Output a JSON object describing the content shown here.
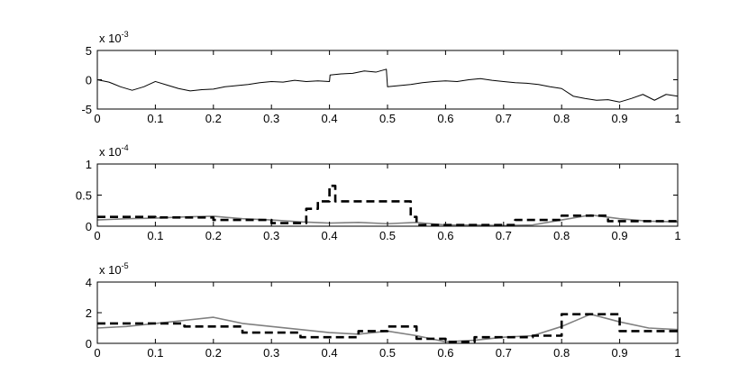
{
  "chart_data": [
    {
      "type": "line",
      "scale_label": "x 10",
      "scale_exponent": "-3",
      "xlim": [
        0,
        1
      ],
      "xticks": [
        0,
        0.1,
        0.2,
        0.3,
        0.4,
        0.5,
        0.6,
        0.7,
        0.8,
        0.9,
        1
      ],
      "ylim": [
        -5,
        5
      ],
      "yticks": [
        -5,
        0,
        5
      ],
      "grid": false,
      "series": [
        {
          "color": "#000000",
          "dashed": false,
          "x": [
            0,
            0.02,
            0.04,
            0.06,
            0.08,
            0.1,
            0.12,
            0.14,
            0.16,
            0.18,
            0.2,
            0.22,
            0.24,
            0.26,
            0.28,
            0.3,
            0.32,
            0.34,
            0.36,
            0.38,
            0.4,
            0.401,
            0.42,
            0.44,
            0.46,
            0.48,
            0.498,
            0.5,
            0.52,
            0.54,
            0.56,
            0.58,
            0.6,
            0.62,
            0.64,
            0.66,
            0.68,
            0.7,
            0.72,
            0.74,
            0.76,
            0.78,
            0.8,
            0.82,
            0.84,
            0.86,
            0.88,
            0.9,
            0.92,
            0.94,
            0.96,
            0.98,
            1
          ],
          "values": [
            0,
            -0.4,
            -1.2,
            -1.8,
            -1.2,
            -0.3,
            -0.9,
            -1.5,
            -1.9,
            -1.7,
            -1.6,
            -1.2,
            -1,
            -0.8,
            -0.5,
            -0.3,
            -0.4,
            -0.1,
            -0.3,
            -0.2,
            -0.3,
            0.8,
            1,
            1.1,
            1.5,
            1.3,
            1.8,
            -1.2,
            -1,
            -0.8,
            -0.5,
            -0.3,
            -0.2,
            -0.3,
            0,
            0.2,
            -0.1,
            -0.3,
            -0.5,
            -0.6,
            -0.8,
            -1.2,
            -1.5,
            -2.8,
            -3.2,
            -3.5,
            -3.4,
            -3.8,
            -3.2,
            -2.5,
            -3.5,
            -2.5,
            -2.8
          ]
        }
      ]
    },
    {
      "type": "line",
      "scale_label": "x 10",
      "scale_exponent": "-4",
      "xlim": [
        0,
        1
      ],
      "xticks": [
        0,
        0.1,
        0.2,
        0.3,
        0.4,
        0.5,
        0.6,
        0.7,
        0.8,
        0.9,
        1
      ],
      "ylim": [
        0,
        1
      ],
      "yticks": [
        0,
        0.5,
        1
      ],
      "grid": false,
      "series": [
        {
          "color": "#808080",
          "dashed": false,
          "x": [
            0,
            0.05,
            0.1,
            0.15,
            0.2,
            0.25,
            0.3,
            0.35,
            0.4,
            0.45,
            0.5,
            0.55,
            0.6,
            0.65,
            0.7,
            0.75,
            0.8,
            0.85,
            0.9,
            0.95,
            1
          ],
          "values": [
            0.1,
            0.12,
            0.13,
            0.15,
            0.16,
            0.12,
            0.1,
            0.07,
            0.05,
            0.06,
            0.04,
            0.06,
            0.02,
            0.02,
            0.01,
            0.02,
            0.1,
            0.18,
            0.12,
            0.08,
            0.07
          ]
        },
        {
          "color": "#000000",
          "dashed": true,
          "x": [
            0,
            0.1,
            0.1,
            0.2,
            0.2,
            0.3,
            0.3,
            0.36,
            0.36,
            0.38,
            0.38,
            0.4,
            0.4,
            0.41,
            0.41,
            0.54,
            0.54,
            0.55,
            0.55,
            0.72,
            0.72,
            0.8,
            0.8,
            0.88,
            0.88,
            1
          ],
          "values": [
            0.15,
            0.15,
            0.14,
            0.14,
            0.1,
            0.1,
            0.05,
            0.05,
            0.28,
            0.28,
            0.4,
            0.4,
            0.65,
            0.65,
            0.4,
            0.4,
            0.15,
            0.15,
            0.02,
            0.02,
            0.1,
            0.1,
            0.17,
            0.17,
            0.08,
            0.08
          ]
        }
      ]
    },
    {
      "type": "line",
      "scale_label": "x 10",
      "scale_exponent": "-5",
      "xlim": [
        0,
        1
      ],
      "xticks": [
        0,
        0.1,
        0.2,
        0.3,
        0.4,
        0.5,
        0.6,
        0.7,
        0.8,
        0.9,
        1
      ],
      "ylim": [
        0,
        4
      ],
      "yticks": [
        0,
        2,
        4
      ],
      "grid": false,
      "series": [
        {
          "color": "#808080",
          "dashed": false,
          "x": [
            0,
            0.05,
            0.1,
            0.15,
            0.2,
            0.25,
            0.3,
            0.35,
            0.4,
            0.45,
            0.5,
            0.55,
            0.6,
            0.65,
            0.7,
            0.75,
            0.8,
            0.85,
            0.9,
            0.95,
            1
          ],
          "values": [
            1,
            1.1,
            1.3,
            1.5,
            1.7,
            1.3,
            1.1,
            0.9,
            0.7,
            0.6,
            0.8,
            0.5,
            0.1,
            0.2,
            0.4,
            0.5,
            1.1,
            1.9,
            1.4,
            1,
            0.9
          ]
        },
        {
          "color": "#000000",
          "dashed": true,
          "x": [
            0,
            0.15,
            0.15,
            0.25,
            0.25,
            0.35,
            0.35,
            0.45,
            0.45,
            0.5,
            0.5,
            0.55,
            0.55,
            0.6,
            0.6,
            0.65,
            0.65,
            0.75,
            0.75,
            0.8,
            0.8,
            0.9,
            0.9,
            1
          ],
          "values": [
            1.3,
            1.3,
            1.1,
            1.1,
            0.7,
            0.7,
            0.4,
            0.4,
            0.8,
            0.8,
            1.1,
            1.1,
            0.3,
            0.3,
            0.1,
            0.1,
            0.4,
            0.4,
            0.5,
            0.5,
            1.9,
            1.9,
            0.8,
            0.8
          ]
        }
      ]
    }
  ]
}
